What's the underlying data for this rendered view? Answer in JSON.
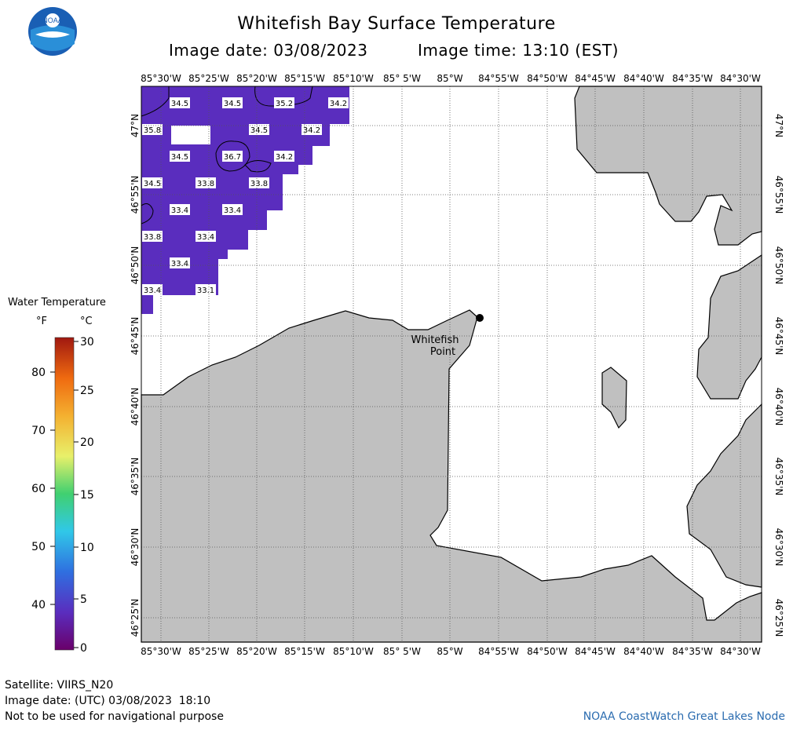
{
  "header": {
    "title": "Whitefish Bay Surface Temperature",
    "date_label": "Image date: 03/08/2023",
    "time_label": "Image time: 13:10 (EST)",
    "logo_text": "NOAA"
  },
  "map": {
    "lon_labels": [
      "85°30'W",
      "85°25'W",
      "85°20'W",
      "85°15'W",
      "85°10'W",
      "85° 5'W",
      "85°W",
      "84°55'W",
      "84°50'W",
      "84°45'W",
      "84°40'W",
      "84°35'W",
      "84°30'W"
    ],
    "lat_labels": [
      "47°N",
      "46°55'N",
      "46°50'N",
      "46°45'N",
      "46°40'N",
      "46°35'N",
      "46°30'N",
      "46°25'N"
    ],
    "place_label_line1": "Whitefish",
    "place_label_line2": "Point",
    "land_color": "#c0c0c0",
    "water_temp_color": "#5a2dbe",
    "temperature_labels": [
      "34.5",
      "34.5",
      "35.2",
      "34.2",
      "35.8",
      "34.5",
      "34.2",
      "34.5",
      "36.7",
      "34.2",
      "34.5",
      "33.8",
      "33.8",
      "33.4",
      "33.4",
      "33.8",
      "33.4",
      "33.4",
      "33.4",
      "33.1"
    ]
  },
  "legend": {
    "title": "Water Temperature",
    "unit_f": "°F",
    "unit_c": "°C",
    "f_ticks": [
      "80",
      "70",
      "60",
      "50",
      "40"
    ],
    "c_ticks": [
      "30",
      "25",
      "20",
      "15",
      "10",
      "5",
      "0"
    ]
  },
  "footer": {
    "satellite": "Satellite: VIIRS_N20",
    "utc_date": "Image date: (UTC) 03/08/2023  18:10",
    "disclaimer": "Not to be used for navigational purpose",
    "credit": "NOAA CoastWatch Great Lakes Node"
  }
}
